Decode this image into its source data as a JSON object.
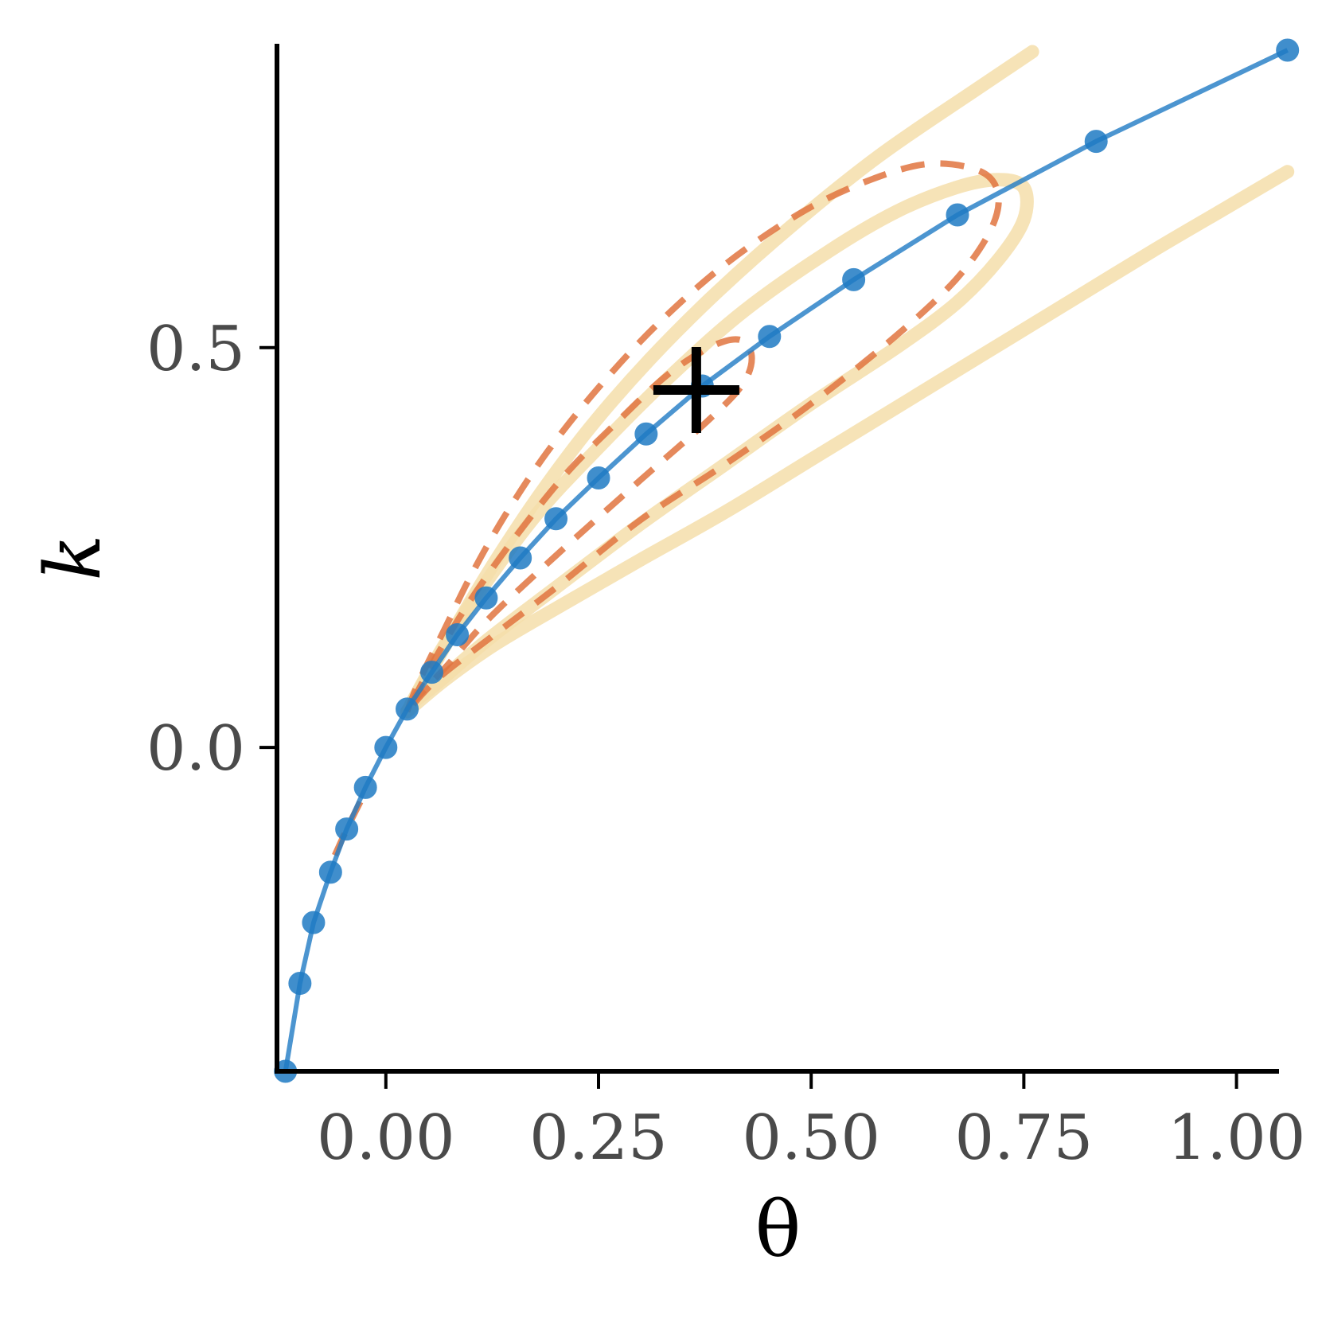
{
  "chart_data": {
    "type": "line",
    "xlabel": "θ",
    "ylabel": "k",
    "xlim": [
      -0.128,
      1.05
    ],
    "ylim": [
      -0.405,
      0.88
    ],
    "x_ticks": [
      0.0,
      0.25,
      0.5,
      0.75,
      1.0
    ],
    "x_tick_labels": [
      "0.00",
      "0.25",
      "0.50",
      "0.75",
      "1.00"
    ],
    "y_ticks": [
      0.0,
      0.5
    ],
    "y_tick_labels": [
      "0.0",
      "0.5"
    ],
    "grid": false,
    "legend": "none",
    "colors": {
      "line": "#1f7bc4",
      "dashed": "#e0743f",
      "band": "#f5deaa",
      "marker": "#000000"
    },
    "series": [
      {
        "style": "line-markers",
        "points": [
          [
            -0.118,
            -0.405
          ],
          [
            -0.101,
            -0.295
          ],
          [
            -0.085,
            -0.219
          ],
          [
            -0.065,
            -0.156
          ],
          [
            -0.046,
            -0.102
          ],
          [
            -0.024,
            -0.05
          ],
          [
            0.0,
            0.0
          ],
          [
            0.025,
            0.048
          ],
          [
            0.054,
            0.094
          ],
          [
            0.084,
            0.141
          ],
          [
            0.118,
            0.187
          ],
          [
            0.158,
            0.237
          ],
          [
            0.2,
            0.286
          ],
          [
            0.25,
            0.337
          ],
          [
            0.306,
            0.392
          ],
          [
            0.372,
            0.452
          ],
          [
            0.451,
            0.514
          ],
          [
            0.55,
            0.585
          ],
          [
            0.672,
            0.666
          ],
          [
            0.835,
            0.758
          ],
          [
            1.06,
            0.872
          ]
        ]
      },
      {
        "style": "band",
        "points": [
          [
            0.025,
            0.045
          ],
          [
            0.055,
            0.1
          ],
          [
            0.09,
            0.165
          ],
          [
            0.13,
            0.235
          ],
          [
            0.18,
            0.315
          ],
          [
            0.24,
            0.4
          ],
          [
            0.31,
            0.485
          ],
          [
            0.39,
            0.57
          ],
          [
            0.48,
            0.655
          ],
          [
            0.58,
            0.74
          ],
          [
            0.69,
            0.82
          ],
          [
            0.76,
            0.87
          ]
        ]
      },
      {
        "style": "band",
        "points": [
          [
            0.025,
            0.045
          ],
          [
            0.07,
            0.085
          ],
          [
            0.13,
            0.13
          ],
          [
            0.21,
            0.18
          ],
          [
            0.3,
            0.235
          ],
          [
            0.4,
            0.295
          ],
          [
            0.5,
            0.36
          ],
          [
            0.6,
            0.425
          ],
          [
            0.7,
            0.49
          ],
          [
            0.8,
            0.555
          ],
          [
            0.9,
            0.62
          ],
          [
            0.98,
            0.67
          ],
          [
            1.06,
            0.72
          ]
        ]
      },
      {
        "style": "band",
        "points": [
          [
            0.03,
            0.055
          ],
          [
            0.07,
            0.13
          ],
          [
            0.12,
            0.21
          ],
          [
            0.18,
            0.295
          ],
          [
            0.25,
            0.375
          ],
          [
            0.33,
            0.46
          ],
          [
            0.42,
            0.545
          ],
          [
            0.52,
            0.62
          ],
          [
            0.6,
            0.67
          ],
          [
            0.67,
            0.7
          ],
          [
            0.72,
            0.71
          ],
          [
            0.75,
            0.7
          ],
          [
            0.75,
            0.66
          ],
          [
            0.72,
            0.61
          ],
          [
            0.67,
            0.555
          ],
          [
            0.6,
            0.5
          ],
          [
            0.5,
            0.43
          ],
          [
            0.4,
            0.355
          ],
          [
            0.3,
            0.28
          ],
          [
            0.2,
            0.2
          ],
          [
            0.12,
            0.135
          ],
          [
            0.06,
            0.08
          ],
          [
            0.03,
            0.055
          ]
        ]
      },
      {
        "style": "dashed",
        "points": [
          [
            0.025,
            0.045
          ],
          [
            0.04,
            0.085
          ],
          [
            0.07,
            0.15
          ],
          [
            0.1,
            0.215
          ],
          [
            0.14,
            0.29
          ],
          [
            0.19,
            0.37
          ],
          [
            0.25,
            0.45
          ],
          [
            0.32,
            0.53
          ],
          [
            0.4,
            0.605
          ],
          [
            0.49,
            0.67
          ],
          [
            0.57,
            0.71
          ],
          [
            0.64,
            0.73
          ],
          [
            0.7,
            0.72
          ],
          [
            0.72,
            0.69
          ],
          [
            0.71,
            0.645
          ],
          [
            0.67,
            0.585
          ],
          [
            0.6,
            0.515
          ],
          [
            0.5,
            0.43
          ],
          [
            0.4,
            0.355
          ],
          [
            0.3,
            0.285
          ],
          [
            0.2,
            0.2
          ],
          [
            0.12,
            0.135
          ],
          [
            0.06,
            0.085
          ],
          [
            0.025,
            0.045
          ]
        ]
      },
      {
        "style": "dashed",
        "points": [
          [
            0.03,
            0.055
          ],
          [
            0.06,
            0.115
          ],
          [
            0.1,
            0.185
          ],
          [
            0.15,
            0.26
          ],
          [
            0.21,
            0.34
          ],
          [
            0.27,
            0.405
          ],
          [
            0.33,
            0.465
          ],
          [
            0.38,
            0.5
          ],
          [
            0.415,
            0.51
          ],
          [
            0.43,
            0.49
          ],
          [
            0.42,
            0.455
          ],
          [
            0.38,
            0.41
          ],
          [
            0.3,
            0.335
          ],
          [
            0.2,
            0.24
          ],
          [
            0.12,
            0.16
          ],
          [
            0.07,
            0.1
          ],
          [
            0.03,
            0.055
          ]
        ]
      },
      {
        "style": "dashed",
        "points": [
          [
            -0.06,
            -0.135
          ],
          [
            -0.045,
            -0.1
          ],
          [
            -0.03,
            -0.068
          ]
        ]
      }
    ],
    "annotations": [
      {
        "type": "plus-marker",
        "x": 0.365,
        "y": 0.447
      }
    ]
  }
}
